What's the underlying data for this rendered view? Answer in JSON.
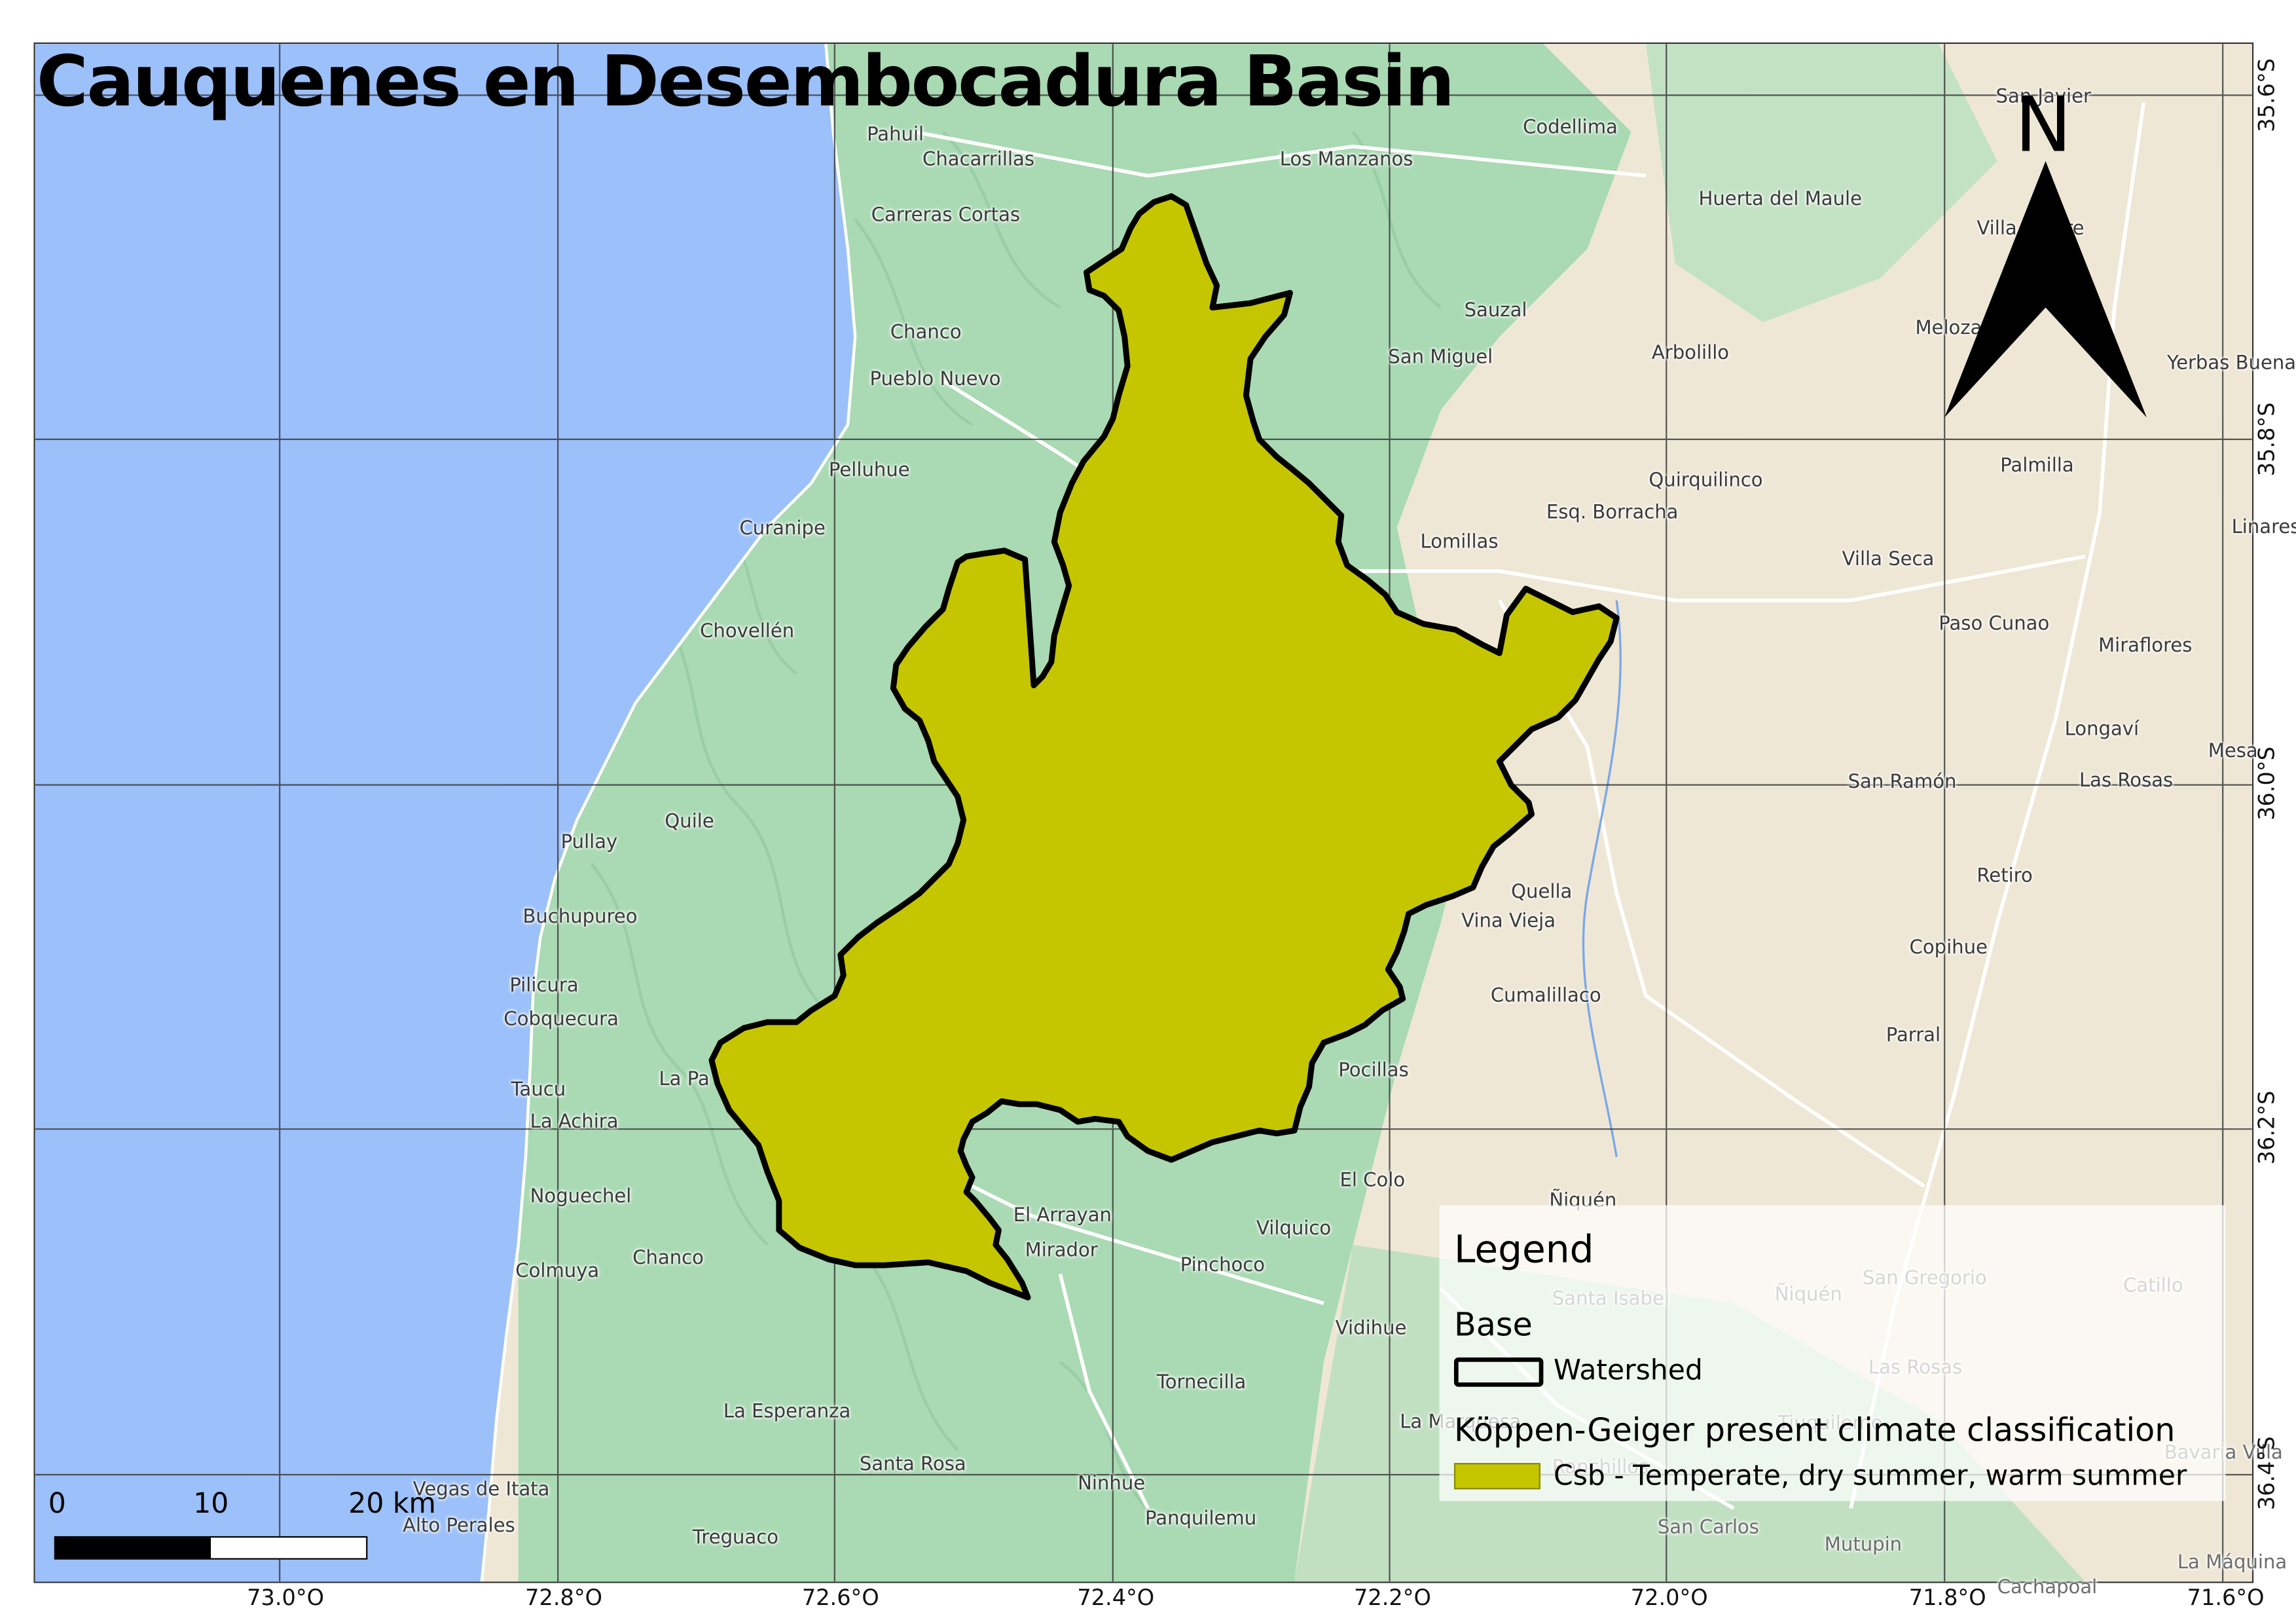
{
  "title": "Cauquenes en Desembocadura Basin",
  "north_arrow": {
    "letter": "N",
    "icon": "north-arrow-icon"
  },
  "legend": {
    "title": "Legend",
    "groups": [
      {
        "name": "Base",
        "items": [
          {
            "label": "Watershed",
            "symbol": "outline",
            "color": "#000000"
          }
        ]
      },
      {
        "name": "Köppen-Geiger present climate classification",
        "items": [
          {
            "label": "Csb - Temperate, dry summer, warm summer",
            "symbol": "fill",
            "color": "#c5c600"
          }
        ]
      }
    ]
  },
  "scale_bar": {
    "ticks": [
      "0",
      "10",
      "20 km"
    ]
  },
  "longitude_labels": [
    "73.0°O",
    "72.8°O",
    "72.6°O",
    "72.4°O",
    "72.2°O",
    "72.0°O",
    "71.8°O",
    "71.6°O"
  ],
  "latitude_labels": [
    "35.6°S",
    "35.8°S",
    "36.0°S",
    "36.2°S",
    "36.4°S"
  ],
  "colors": {
    "ocean": "#9cc0f9",
    "forest": "#a8dab5",
    "farmland": "#efe6d4",
    "watershed_fill": "#c5c600",
    "watershed_outline": "#000000"
  },
  "places": [
    {
      "name": "Pahuil"
    },
    {
      "name": "Chacarrillas"
    },
    {
      "name": "Codellima"
    },
    {
      "name": "Los Manzanos"
    },
    {
      "name": "San Javier"
    },
    {
      "name": "Carreras Cortas"
    },
    {
      "name": "Huerta del Maule"
    },
    {
      "name": "Villa Alegre"
    },
    {
      "name": "Sauzal"
    },
    {
      "name": "Chanco"
    },
    {
      "name": "San Miguel"
    },
    {
      "name": "Arbolillo"
    },
    {
      "name": "Melozal"
    },
    {
      "name": "Yerbas Buenas"
    },
    {
      "name": "Pueblo Nuevo"
    },
    {
      "name": "Pelluhue"
    },
    {
      "name": "Palmilla"
    },
    {
      "name": "Quirquilinco"
    },
    {
      "name": "Curanipe"
    },
    {
      "name": "Esq. Borracha"
    },
    {
      "name": "Linares"
    },
    {
      "name": "Lomillas"
    },
    {
      "name": "Villa Seca"
    },
    {
      "name": "Chovellén"
    },
    {
      "name": "Paso Cunao"
    },
    {
      "name": "Miraflores"
    },
    {
      "name": "Longaví"
    },
    {
      "name": "Mesa"
    },
    {
      "name": "San Ramón"
    },
    {
      "name": "Las Rosas"
    },
    {
      "name": "Quile"
    },
    {
      "name": "Pullay"
    },
    {
      "name": "Retiro"
    },
    {
      "name": "Buchupureo"
    },
    {
      "name": "Quella"
    },
    {
      "name": "Vina Vieja"
    },
    {
      "name": "Copihue"
    },
    {
      "name": "Pilicura"
    },
    {
      "name": "Cobquecura"
    },
    {
      "name": "Cumalillaco"
    },
    {
      "name": "Parral"
    },
    {
      "name": "Taucu"
    },
    {
      "name": "La Achira"
    },
    {
      "name": "El Colo"
    },
    {
      "name": "Ñiquén"
    },
    {
      "name": "Noguechel"
    },
    {
      "name": "El Arrayan"
    },
    {
      "name": "Vilquico"
    },
    {
      "name": "Mirador"
    },
    {
      "name": "Colmuya"
    },
    {
      "name": "Chanco"
    },
    {
      "name": "Pinchoco"
    },
    {
      "name": "San Gregorio"
    },
    {
      "name": "Catillo"
    },
    {
      "name": "Santa Isabel"
    },
    {
      "name": "Ñiquén"
    },
    {
      "name": "Vidihue"
    },
    {
      "name": "Tornecilla"
    },
    {
      "name": "Las Rosas"
    },
    {
      "name": "La Esperanza"
    },
    {
      "name": "Santa Rosa"
    },
    {
      "name": "Ninhue"
    },
    {
      "name": "Vegas de Itata"
    },
    {
      "name": "Alto Perales"
    },
    {
      "name": "Panquilemu"
    },
    {
      "name": "Treguaco"
    },
    {
      "name": "San Carlos"
    },
    {
      "name": "Mutupin"
    },
    {
      "name": "Tiuquilemo"
    },
    {
      "name": "Ranchillos"
    },
    {
      "name": "La Máquina"
    },
    {
      "name": "Bavaria Villa"
    },
    {
      "name": "Cachapoal"
    },
    {
      "name": "La Pa"
    },
    {
      "name": "Pocillas"
    },
    {
      "name": "La Marquesa"
    }
  ]
}
